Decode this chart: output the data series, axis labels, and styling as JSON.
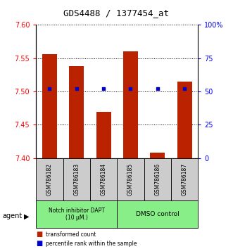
{
  "title": "GDS4488 / 1377454_at",
  "samples": [
    "GSM786182",
    "GSM786183",
    "GSM786184",
    "GSM786185",
    "GSM786186",
    "GSM786187"
  ],
  "bar_values": [
    7.556,
    7.538,
    7.47,
    7.56,
    7.408,
    7.515
  ],
  "percentile_values": [
    52,
    52,
    52,
    52,
    52,
    52
  ],
  "bar_bottom": 7.4,
  "ylim_left": [
    7.4,
    7.6
  ],
  "ylim_right": [
    0,
    100
  ],
  "yticks_left": [
    7.4,
    7.45,
    7.5,
    7.55,
    7.6
  ],
  "yticks_right": [
    0,
    25,
    50,
    75,
    100
  ],
  "ytick_labels_right": [
    "0",
    "25",
    "50",
    "75",
    "100%"
  ],
  "bar_color": "#bb2200",
  "percentile_color": "#0000cc",
  "group1_label": "Notch inhibitor DAPT\n(10 μM.)",
  "group2_label": "DMSO control",
  "group1_indices": [
    0,
    1,
    2
  ],
  "group2_indices": [
    3,
    4,
    5
  ],
  "group_bg_color": "#88ee88",
  "sample_bg_color": "#cccccc",
  "legend_bar_label": "transformed count",
  "legend_pct_label": "percentile rank within the sample",
  "agent_label": "agent"
}
